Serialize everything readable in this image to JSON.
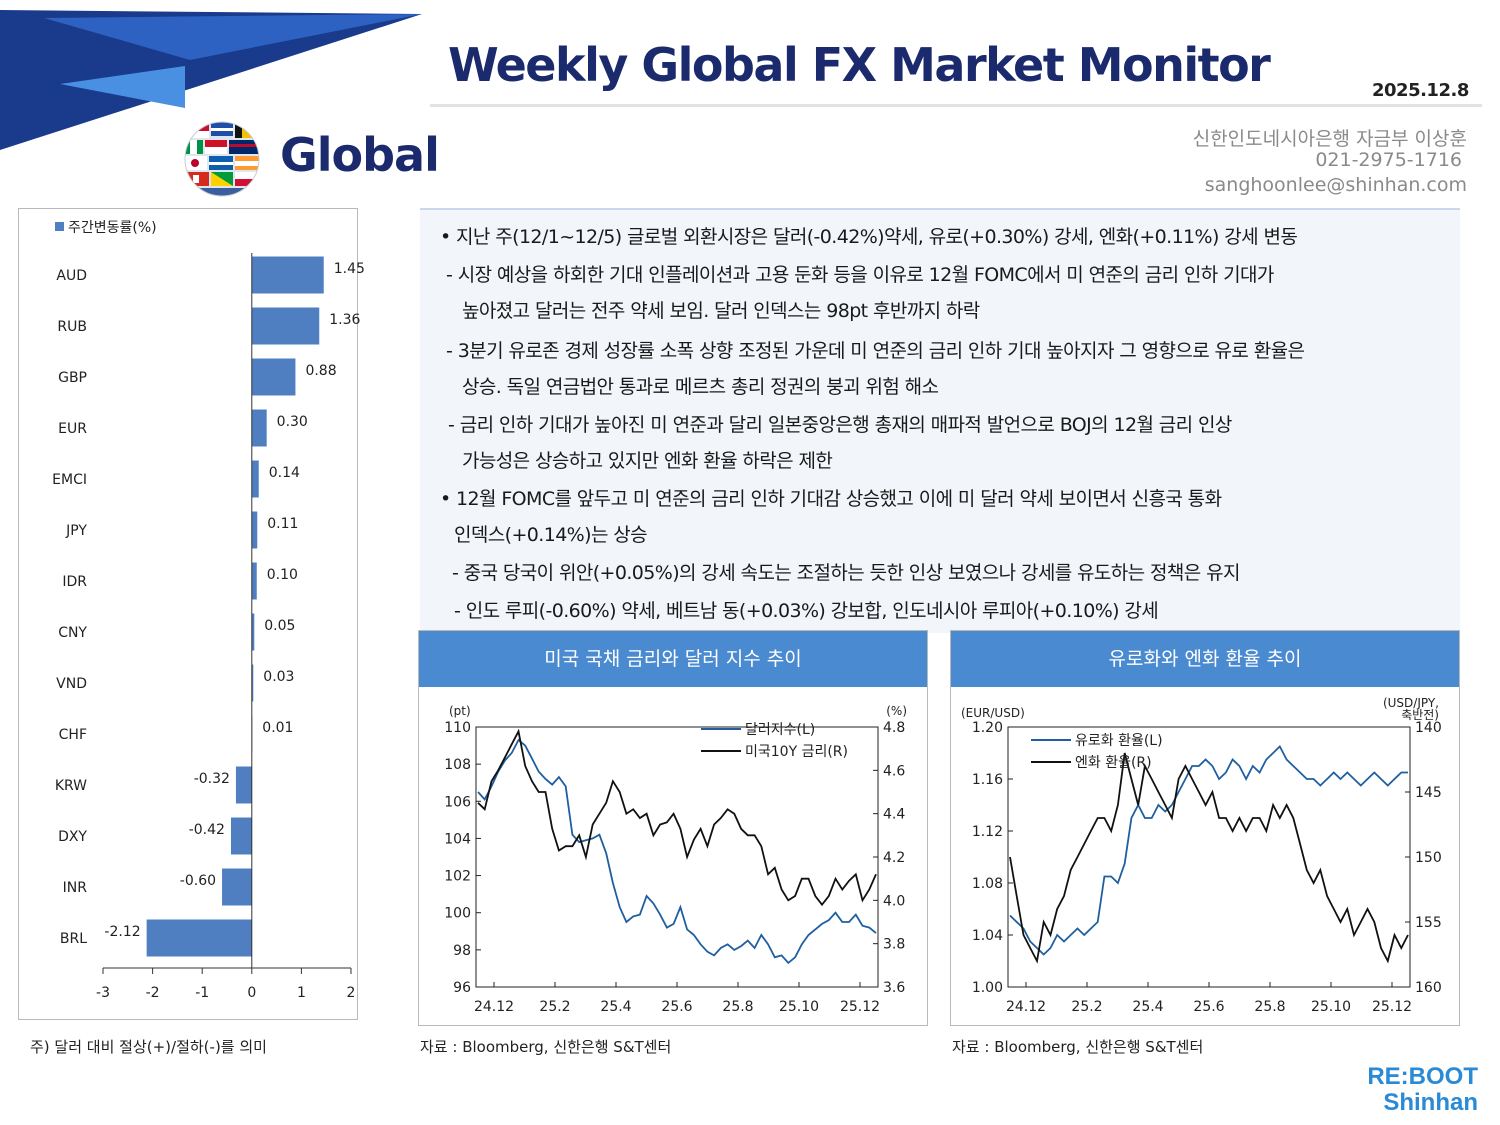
{
  "header": {
    "title": "Weekly Global FX Market Monitor",
    "date": "2025.12.8",
    "section_title": "Global",
    "contact_name": "신한인도네시아은행 자금부 이상훈",
    "contact_phone": "021-2975-1716",
    "contact_email": "sanghoonlee@shinhan.com"
  },
  "colors": {
    "navy": "#1a2a6c",
    "bar_blue": "#4f7fc0",
    "header_blue": "#4a8ad0",
    "line_blue": "#1f5fa0",
    "line_black": "#111111"
  },
  "summary": {
    "lines": [
      "• 지난 주(12/1~12/5) 글로벌 외환시장은 달러(-0.42%)약세, 유로(+0.30%) 강세, 엔화(+0.11%) 강세 변동",
      "-  시장 예상을 하회한 기대 인플레이션과 고용 둔화 등을 이유로 12월 FOMC에서 미 연준의 금리 인하 기대가",
      "높아졌고 달러는 전주 약세 보임. 달러 인덱스는 98pt 후반까지 하락",
      "-  3분기 유로존 경제 성장률 소폭 상향 조정된 가운데 미 연준의 금리 인하 기대 높아지자 그 영향으로 유로 환율은",
      "상승. 독일 연금법안 통과로 메르츠 총리 정권의 붕괴 위험 해소",
      "- 금리 인하 기대가 높아진 미 연준과 달리 일본중앙은행 총재의 매파적 발언으로 BOJ의 12월 금리 인상",
      "가능성은 상승하고 있지만 엔화 환율 하락은 제한",
      "• 12월 FOMC를 앞두고 미 연준의 금리 인하 기대감 상승했고 이에 미 달러 약세 보이면서 신흥국 통화",
      "인덱스(+0.14%)는 상승",
      "- 중국 당국이 위안(+0.05%)의 강세 속도는 조절하는 듯한 인상 보였으나 강세를 유도하는 정책은 유지",
      "- 인도 루피(-0.60%) 약세, 베트남 동(+0.03%) 강보합, 인도네시아 루피아(+0.10%) 강세"
    ]
  },
  "left_note": "주) 달러 대비 절상(+)/절하(-)를 의미",
  "chart1": {
    "title": "미국 국채 금리와 달러 지수 추이",
    "source": "자료 : Bloomberg, 신한은행 S&T센터"
  },
  "chart2": {
    "title": "유로화와 엔화 환율 추이",
    "source": "자료 : Bloomberg, 신한은행 S&T센터"
  },
  "brand": {
    "line1": "RE:BOOT",
    "line2": "Shinhan"
  },
  "chart_data": [
    {
      "type": "bar",
      "orientation": "horizontal",
      "legend": "주간변동률(%)",
      "categories": [
        "AUD",
        "RUB",
        "GBP",
        "EUR",
        "EMCI",
        "JPY",
        "IDR",
        "CNY",
        "VND",
        "CHF",
        "KRW",
        "DXY",
        "INR",
        "BRL"
      ],
      "values": [
        1.45,
        1.36,
        0.88,
        0.3,
        0.14,
        0.11,
        0.1,
        0.05,
        0.03,
        0.01,
        -0.32,
        -0.42,
        -0.6,
        -2.12
      ],
      "value_labels": [
        "1.45",
        "1.36",
        "0.88",
        "0.30",
        "0.14",
        "0.11",
        "0.10",
        "0.05",
        "0.03",
        "0.01",
        "-0.32",
        "-0.42",
        "-0.60",
        "-2.12"
      ],
      "xlim": [
        -3,
        2
      ],
      "xticks": [
        "-3",
        "-2",
        "-1",
        "0",
        "1",
        "2"
      ],
      "color": "#4f7fc0"
    },
    {
      "type": "line",
      "x_ticks": [
        "24.12",
        "25.2",
        "25.4",
        "25.6",
        "25.8",
        "25.10",
        "25.12"
      ],
      "left_unit": "(pt)",
      "right_unit": "(%)",
      "left_ticks": [
        "110",
        "108",
        "106",
        "104",
        "102",
        "100",
        "98",
        "96"
      ],
      "right_ticks": [
        "4.8",
        "4.6",
        "4.4",
        "4.2",
        "4.0",
        "3.8",
        "3.6"
      ],
      "ylim_left": [
        96,
        110
      ],
      "ylim_right": [
        3.6,
        4.8
      ],
      "series": [
        {
          "name": "달러지수(L)",
          "axis": "left",
          "color": "#1f5fa0",
          "values": [
            106.5,
            106.1,
            106.8,
            107.6,
            108.2,
            108.6,
            109.3,
            109.0,
            108.3,
            107.6,
            107.2,
            106.9,
            107.3,
            106.8,
            104.2,
            103.8,
            103.9,
            104.0,
            104.2,
            103.2,
            101.6,
            100.3,
            99.5,
            99.8,
            99.9,
            100.9,
            100.5,
            99.9,
            99.2,
            99.4,
            100.3,
            99.1,
            98.8,
            98.3,
            97.9,
            97.7,
            98.1,
            98.3,
            98.0,
            98.2,
            98.5,
            98.1,
            98.8,
            98.3,
            97.6,
            97.7,
            97.3,
            97.6,
            98.3,
            98.8,
            99.1,
            99.4,
            99.6,
            100.0,
            99.5,
            99.5,
            99.9,
            99.3,
            99.2,
            98.9
          ]
        },
        {
          "name": "미국10Y 금리(R)",
          "axis": "right",
          "color": "#111111",
          "values": [
            4.45,
            4.42,
            4.55,
            4.6,
            4.66,
            4.72,
            4.78,
            4.62,
            4.55,
            4.5,
            4.5,
            4.33,
            4.23,
            4.25,
            4.25,
            4.3,
            4.2,
            4.35,
            4.4,
            4.45,
            4.55,
            4.5,
            4.4,
            4.42,
            4.38,
            4.4,
            4.3,
            4.35,
            4.36,
            4.4,
            4.33,
            4.2,
            4.28,
            4.33,
            4.25,
            4.35,
            4.38,
            4.42,
            4.4,
            4.33,
            4.3,
            4.3,
            4.25,
            4.12,
            4.15,
            4.05,
            4.0,
            4.02,
            4.1,
            4.1,
            4.02,
            3.98,
            4.02,
            4.1,
            4.05,
            4.09,
            4.12,
            4.0,
            4.05,
            4.12
          ]
        }
      ]
    },
    {
      "type": "line",
      "x_ticks": [
        "24.12",
        "25.2",
        "25.4",
        "25.6",
        "25.8",
        "25.10",
        "25.12"
      ],
      "left_unit": "(EUR/USD)",
      "right_unit": "(USD/JPY, 축반전)",
      "left_ticks": [
        "1.20",
        "1.16",
        "1.12",
        "1.08",
        "1.04",
        "1.00"
      ],
      "right_ticks": [
        "140",
        "145",
        "150",
        "155",
        "160"
      ],
      "ylim_left": [
        1.0,
        1.2
      ],
      "ylim_right_inverted": [
        160,
        140
      ],
      "series": [
        {
          "name": "유로화 환율(L)",
          "axis": "left",
          "color": "#1f5fa0",
          "values": [
            1.055,
            1.05,
            1.045,
            1.035,
            1.03,
            1.025,
            1.03,
            1.04,
            1.035,
            1.04,
            1.045,
            1.04,
            1.045,
            1.05,
            1.085,
            1.085,
            1.08,
            1.095,
            1.13,
            1.14,
            1.13,
            1.13,
            1.14,
            1.135,
            1.14,
            1.15,
            1.16,
            1.17,
            1.17,
            1.175,
            1.17,
            1.16,
            1.165,
            1.175,
            1.17,
            1.16,
            1.17,
            1.165,
            1.175,
            1.18,
            1.185,
            1.175,
            1.17,
            1.165,
            1.16,
            1.16,
            1.155,
            1.16,
            1.165,
            1.16,
            1.165,
            1.16,
            1.155,
            1.16,
            1.165,
            1.16,
            1.155,
            1.16,
            1.165,
            1.165
          ]
        },
        {
          "name": "엔화 환율(R)",
          "axis": "right",
          "color": "#111111",
          "values": [
            150,
            153,
            156,
            157,
            158,
            155,
            156,
            154,
            153,
            151,
            150,
            149,
            148,
            147,
            147,
            148,
            146,
            142,
            144,
            146,
            143,
            144,
            145,
            146,
            147,
            144,
            143,
            144,
            145,
            146,
            145,
            147,
            147,
            148,
            147,
            148,
            147,
            147,
            148,
            146,
            147,
            146,
            147,
            149,
            151,
            152,
            151,
            153,
            154,
            155,
            154,
            156,
            155,
            154,
            155,
            157,
            158,
            156,
            157,
            156
          ]
        }
      ]
    }
  ]
}
